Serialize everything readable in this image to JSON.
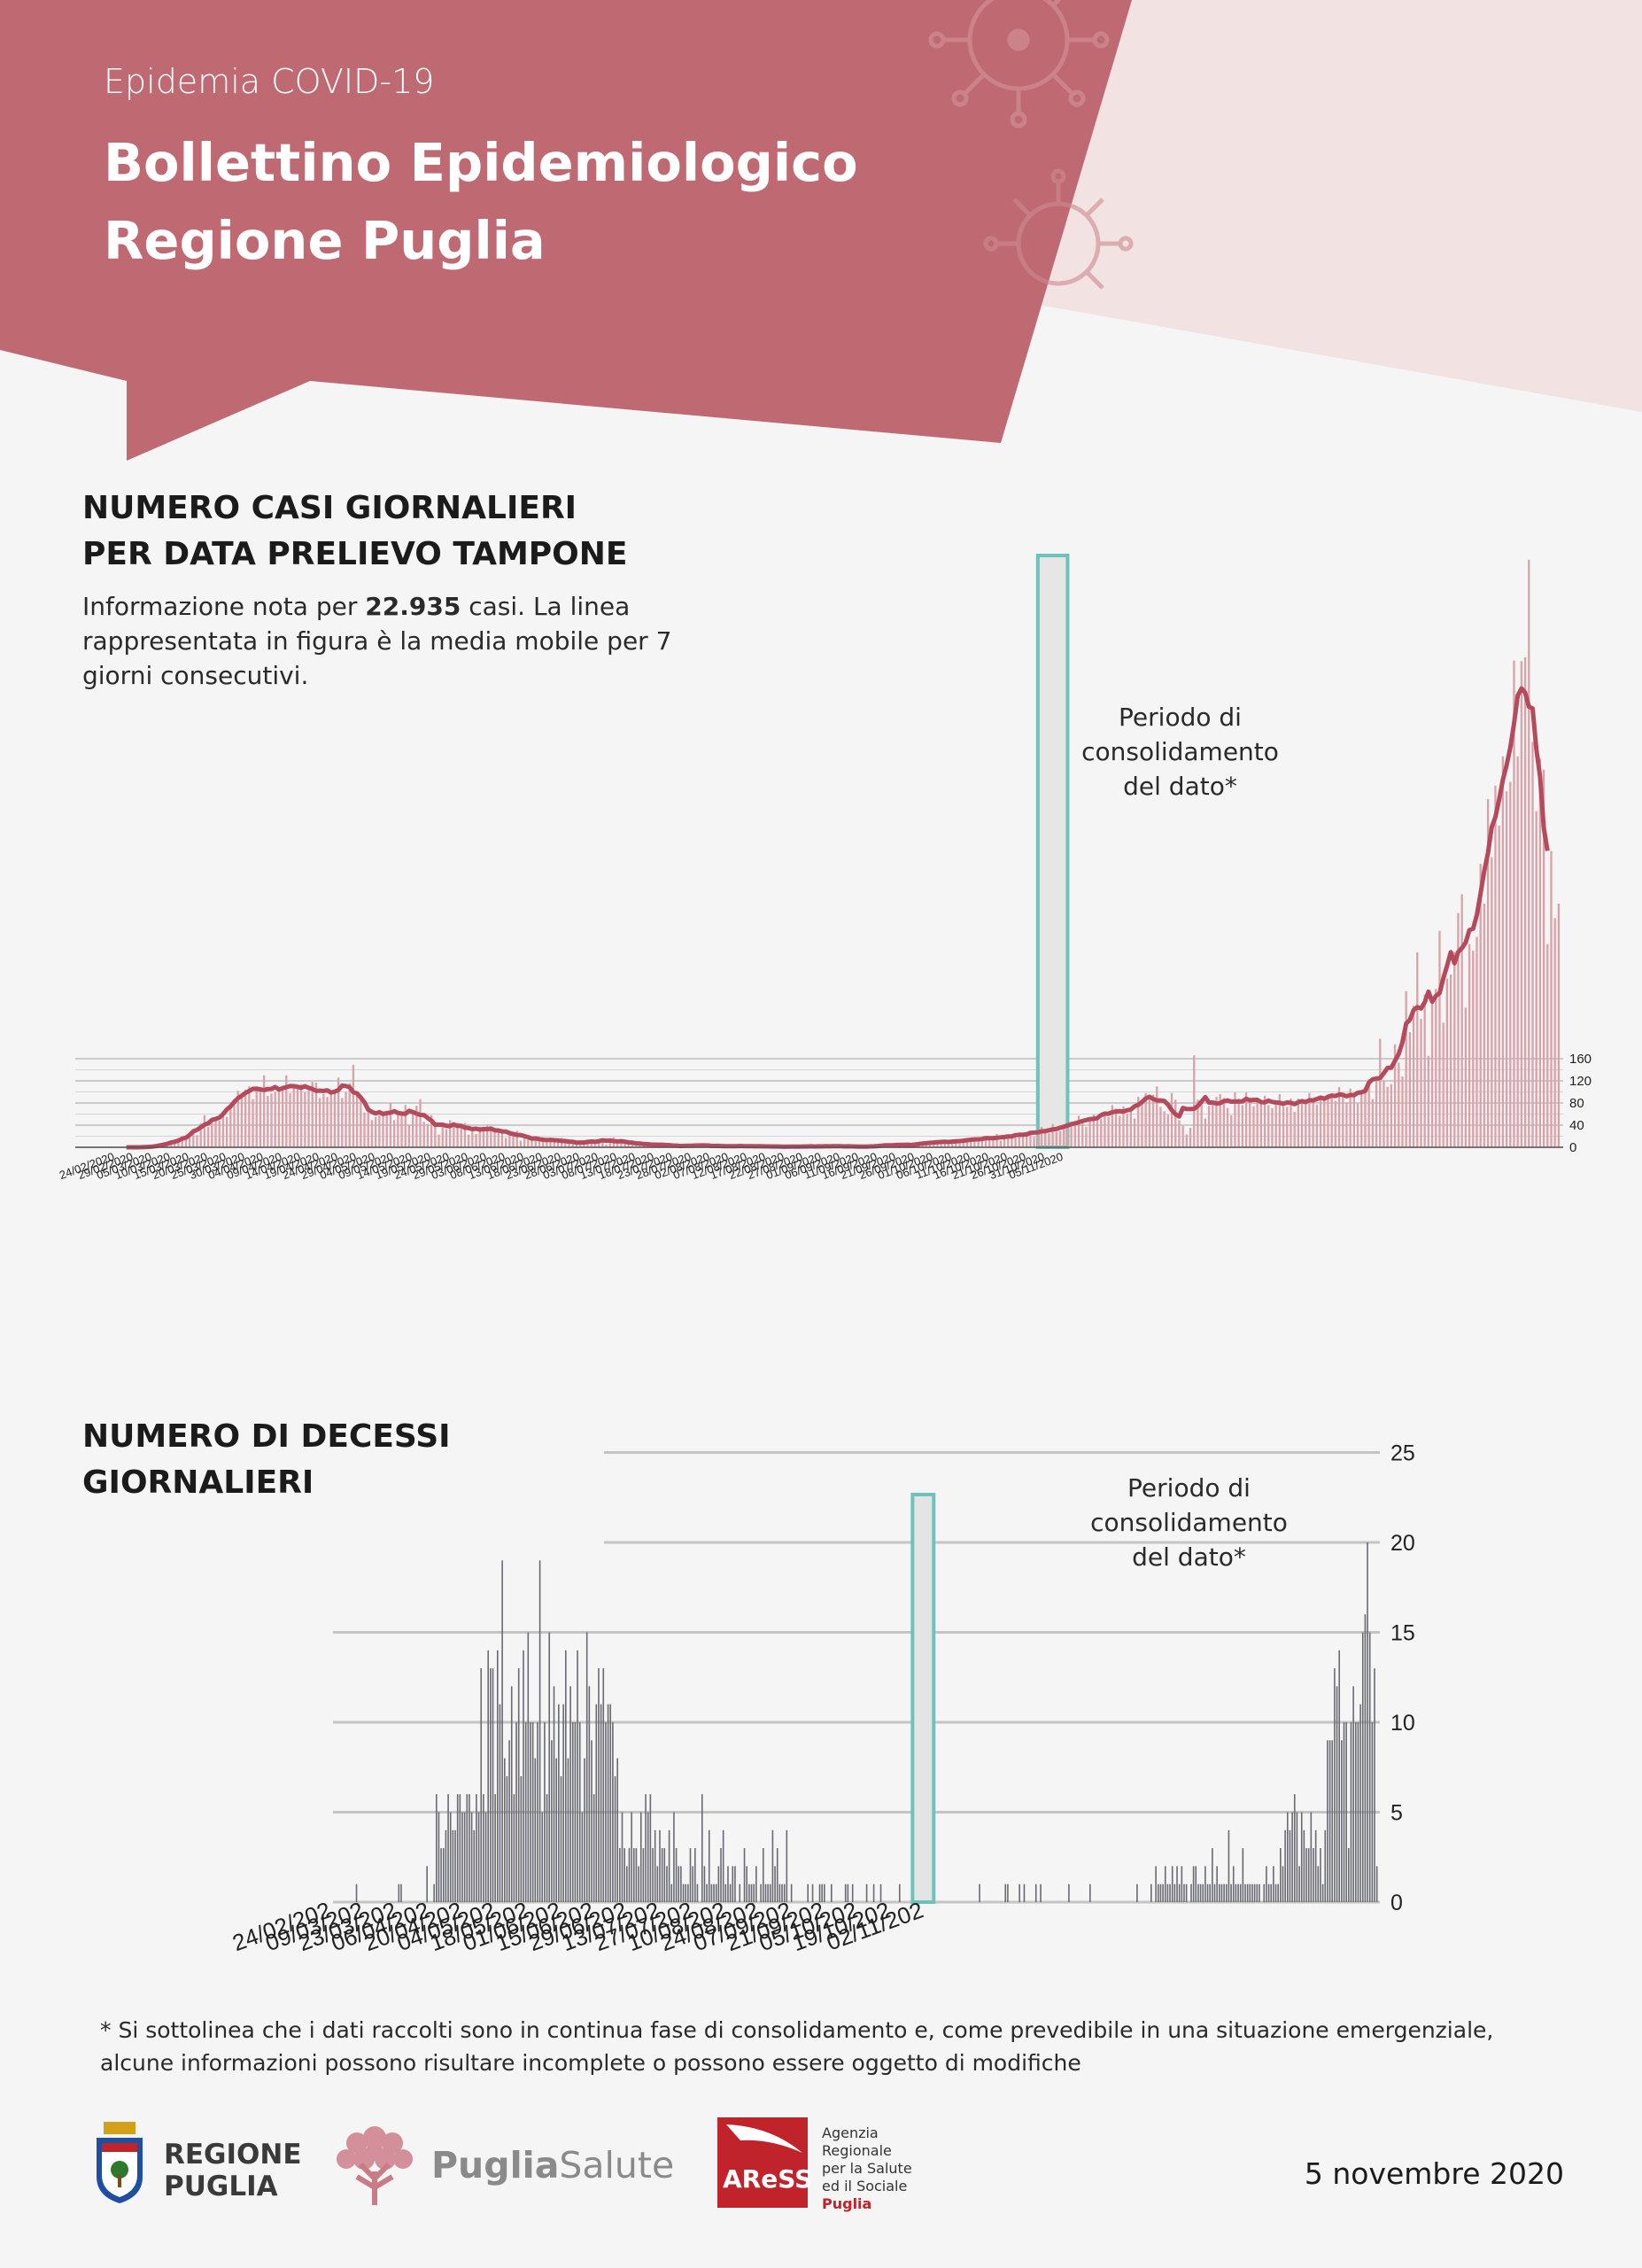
{
  "header": {
    "kicker": "Epidemia COVID-19",
    "title_line1": "Bollettino Epidemiologico",
    "title_line2": "Regione Puglia",
    "colors": {
      "banner": "#bf6a72",
      "banner_light": "#f2e2e2",
      "virus": "#cf8a90"
    }
  },
  "section_cases": {
    "title_line1": "NUMERO CASI GIORNALIERI",
    "title_line2": "PER DATA PRELIEVO TAMPONE",
    "desc_before": "Informazione nota per ",
    "desc_bold": "22.935",
    "desc_after": " casi. La linea rappresentata in figura è la media mobile per 7 giorni consecutivi.",
    "note_line1": "Periodo di",
    "note_line2": "consolidamento",
    "note_line3": "del dato*"
  },
  "section_deaths": {
    "title_line1": "NUMERO DI DECESSI",
    "title_line2": "GIORNALIERI",
    "note_line1": "Periodo di",
    "note_line2": "consolidamento",
    "note_line3": "del dato*"
  },
  "chart_data": [
    {
      "type": "bar",
      "name": "cases",
      "bar_color": "#d9a2a8",
      "line_color": "#b44a5c",
      "highlight_color": "#6cc3bb",
      "x_start": "24/02/2020",
      "tick_labels": [
        "24/02/2020",
        "29/02/2020",
        "05/03/2020",
        "10/03/2020",
        "15/03/2020",
        "20/03/2020",
        "25/03/2020",
        "30/03/2020",
        "04/04/2020",
        "09/04/2020",
        "14/04/2020",
        "19/04/2020",
        "24/04/2020",
        "29/04/2020",
        "04/05/2020",
        "09/05/2020",
        "14/05/2020",
        "19/05/2020",
        "24/05/2020",
        "29/05/2020",
        "03/06/2020",
        "08/06/2020",
        "13/06/2020",
        "18/06/2020",
        "23/06/2020",
        "28/06/2020",
        "03/07/2020",
        "08/07/2020",
        "13/07/2020",
        "18/07/2020",
        "23/07/2020",
        "28/07/2020",
        "02/08/2020",
        "07/08/2020",
        "12/08/2020",
        "17/08/2020",
        "22/08/2020",
        "27/08/2020",
        "01/09/2020",
        "06/09/2020",
        "11/09/2020",
        "16/09/2020",
        "21/09/2020",
        "26/09/2020",
        "01/10/2020",
        "06/10/2020",
        "11/10/2020",
        "16/10/2020",
        "21/10/2020",
        "26/10/2020",
        "31/10/2020",
        "05/11/2020"
      ],
      "y_ticks": [
        0,
        40,
        80,
        120,
        160
      ],
      "ylim": [
        0,
        1070
      ],
      "highlight_range": [
        "30/10/2020",
        "05/11/2020"
      ],
      "values": [
        0,
        0,
        0,
        0,
        0,
        0,
        0,
        0,
        0,
        0,
        1,
        2,
        3,
        3,
        6,
        10,
        8,
        12,
        18,
        13,
        18,
        30,
        22,
        43,
        58,
        37,
        45,
        51,
        48,
        64,
        55,
        75,
        82,
        102,
        92,
        104,
        110,
        87,
        110,
        106,
        130,
        93,
        97,
        100,
        101,
        111,
        130,
        98,
        110,
        110,
        114,
        100,
        103,
        118,
        117,
        89,
        96,
        91,
        102,
        99,
        126,
        89,
        100,
        116,
        149,
        95,
        85,
        63,
        73,
        49,
        55,
        58,
        64,
        66,
        80,
        49,
        60,
        61,
        76,
        41,
        60,
        75,
        87,
        46,
        42,
        58,
        40,
        23,
        42,
        33,
        49,
        41,
        44,
        36,
        44,
        23,
        35,
        24,
        37,
        31,
        41,
        32,
        31,
        32,
        32,
        17,
        28,
        28,
        30,
        12,
        20,
        22,
        15,
        14,
        15,
        12,
        14,
        11,
        14,
        11,
        17,
        11,
        9,
        7,
        9,
        8,
        8,
        6,
        13,
        9,
        15,
        14,
        5,
        14,
        18,
        8,
        11,
        7,
        11,
        8,
        8,
        9,
        4,
        3,
        5,
        4,
        6,
        4,
        8,
        3,
        2,
        2,
        2,
        1,
        3,
        3,
        5,
        3,
        3,
        4,
        3,
        3,
        2,
        1,
        1,
        4,
        2,
        1,
        3,
        2,
        2,
        3,
        1,
        1,
        1,
        2,
        3,
        1,
        2,
        1,
        0,
        1,
        1,
        1,
        3,
        1,
        2,
        0,
        2,
        1,
        3,
        1,
        3,
        1,
        2,
        1,
        3,
        2,
        1,
        1,
        2,
        1,
        0,
        1,
        2,
        2,
        3,
        3,
        5,
        4,
        7,
        2,
        2,
        6,
        5,
        5,
        5,
        4,
        8,
        9,
        12,
        8,
        10,
        9,
        9,
        10,
        11,
        10,
        13,
        13,
        12,
        14,
        17,
        16,
        15,
        14,
        16,
        24,
        12,
        19,
        20,
        20,
        18,
        25,
        24,
        27,
        25,
        19,
        26,
        37,
        28,
        25,
        42,
        28,
        29,
        37,
        42,
        44,
        39,
        57,
        46,
        37,
        51,
        59,
        55,
        51,
        60,
        55,
        76,
        70,
        57,
        74,
        60,
        64,
        52,
        91,
        79,
        98,
        92,
        95,
        110,
        73,
        65,
        59,
        98,
        86,
        49,
        39,
        23,
        35,
        166,
        86,
        85,
        52,
        75,
        79,
        91,
        96,
        89,
        71,
        58,
        99,
        88,
        76,
        99,
        87,
        74,
        90,
        80,
        93,
        76,
        71,
        84,
        96,
        74,
        73,
        88,
        64,
        88,
        80,
        79,
        98,
        86,
        77,
        87,
        87,
        96,
        97,
        84,
        109,
        94,
        81,
        106,
        92,
        79,
        100,
        108,
        123,
        87,
        125,
        196,
        121,
        109,
        114,
        186,
        153,
        128,
        282,
        208,
        256,
        352,
        232,
        276,
        165,
        266,
        286,
        391,
        225,
        305,
        312,
        353,
        423,
        457,
        252,
        367,
        355,
        380,
        512,
        440,
        629,
        524,
        653,
        581,
        706,
        643,
        660,
        879,
        706,
        878,
        885,
        1061,
        732,
        607,
        702,
        682,
        367,
        535,
        414,
        440
      ]
    },
    {
      "type": "bar",
      "name": "deaths",
      "bar_color": "#6a6a72",
      "grid_color": "#c4c4c4",
      "highlight_color": "#6cc3bb",
      "x_start": "24/02/2020",
      "tick_labels": [
        "24/02/202",
        "09/03/202",
        "23/03/202",
        "06/04/202",
        "20/04/202",
        "04/05/202",
        "18/05/202",
        "01/06/202",
        "15/06/202",
        "29/06/202",
        "13/07/202",
        "27/07/202",
        "10/08/202",
        "24/08/202",
        "07/09/202",
        "21/09/202",
        "05/10/202",
        "19/10/202",
        "02/11/202"
      ],
      "y_ticks": [
        0,
        5,
        10,
        15,
        20,
        25
      ],
      "ylim": [
        0,
        25
      ],
      "highlight_range": [
        "30/10/2020",
        "05/11/2020"
      ],
      "values": [
        0,
        0,
        0,
        0,
        0,
        0,
        0,
        0,
        0,
        0,
        0,
        1,
        0,
        0,
        0,
        0,
        0,
        0,
        0,
        0,
        0,
        0,
        0,
        0,
        0,
        0,
        0,
        0,
        0,
        1,
        1,
        0,
        0,
        0,
        0,
        0,
        0,
        0,
        0,
        0,
        0,
        2,
        0,
        0,
        1,
        6,
        5,
        3,
        3,
        4,
        6,
        5,
        4,
        4,
        6,
        6,
        5,
        5,
        6,
        6,
        5,
        4,
        6,
        5,
        13,
        6,
        5,
        14,
        13,
        13,
        6,
        14,
        11,
        19,
        8,
        7,
        9,
        12,
        6,
        10,
        13,
        7,
        14,
        10,
        15,
        10,
        10,
        8,
        10,
        19,
        5,
        10,
        6,
        15,
        9,
        12,
        8,
        11,
        7,
        11,
        14,
        8,
        12,
        10,
        10,
        14,
        10,
        5,
        8,
        15,
        12,
        9,
        6,
        11,
        13,
        11,
        13,
        10,
        11,
        11,
        10,
        7,
        8,
        3,
        5,
        3,
        2,
        3,
        5,
        3,
        3,
        2,
        5,
        3,
        6,
        5,
        6,
        3,
        4,
        2,
        4,
        3,
        3,
        2,
        4,
        1,
        5,
        3,
        2,
        2,
        1,
        1,
        1,
        3,
        2,
        3,
        1,
        0,
        6,
        2,
        1,
        4,
        1,
        1,
        1,
        2,
        3,
        4,
        1,
        2,
        1,
        2,
        2,
        0,
        1,
        0,
        3,
        2,
        1,
        1,
        1,
        2,
        0,
        1,
        3,
        1,
        1,
        1,
        4,
        2,
        3,
        1,
        1,
        1,
        4,
        0,
        1,
        0,
        0,
        0,
        0,
        0,
        0,
        1,
        0,
        1,
        0,
        0,
        1,
        1,
        1,
        0,
        0,
        1,
        0,
        0,
        0,
        0,
        0,
        1,
        1,
        0,
        1,
        0,
        0,
        0,
        0,
        0,
        1,
        0,
        0,
        1,
        0,
        0,
        1,
        0,
        0,
        0,
        0,
        0,
        0,
        0,
        1,
        0,
        0,
        0,
        0,
        0,
        0,
        0,
        0,
        0,
        0,
        0,
        0,
        0,
        0,
        0,
        0,
        0,
        0,
        0,
        0,
        0,
        0,
        0,
        0,
        0,
        0,
        0,
        0,
        0,
        0,
        0,
        0,
        0,
        1,
        0,
        0,
        0,
        0,
        0,
        0,
        0,
        0,
        0,
        0,
        1,
        1,
        0,
        0,
        0,
        0,
        1,
        0,
        1,
        0,
        0,
        0,
        0,
        1,
        0,
        1,
        0,
        0,
        0,
        0,
        0,
        0,
        0,
        0,
        0,
        0,
        0,
        1,
        0,
        0,
        0,
        0,
        0,
        0,
        0,
        0,
        1,
        0,
        0,
        0,
        0,
        0,
        0,
        0,
        0,
        0,
        0,
        0,
        0,
        0,
        0,
        0,
        0,
        0,
        0,
        0,
        1,
        0,
        0,
        0,
        0,
        0,
        1,
        0,
        2,
        1,
        1,
        1,
        2,
        1,
        1,
        2,
        1,
        2,
        1,
        2,
        1,
        1,
        0,
        1,
        2,
        2,
        1,
        1,
        1,
        2,
        1,
        1,
        3,
        1,
        2,
        1,
        1,
        1,
        1,
        4,
        1,
        2,
        1,
        1,
        1,
        3,
        1,
        1,
        1,
        1,
        1,
        1,
        1,
        0,
        1,
        2,
        1,
        1,
        2,
        1,
        1,
        3,
        2,
        4,
        5,
        4,
        5,
        6,
        5,
        2,
        5,
        4,
        3,
        3,
        5,
        3,
        4,
        2,
        3,
        1,
        4,
        9,
        9,
        9,
        13,
        12,
        14,
        9,
        10,
        10,
        3,
        10,
        12,
        10,
        10,
        11,
        15,
        16,
        20,
        15,
        10,
        13,
        2
      ]
    }
  ],
  "footnote_line1": "* Si sottolinea che i dati raccolti sono in continua fase di consolidamento e, come prevedibile in una situazione emergenziale,",
  "footnote_line2": "alcune informazioni possono risultare incomplete o possono essere oggetto di modifiche",
  "logos": {
    "regione_line1": "REGIONE",
    "regione_line2": "PUGLIA",
    "puglia_bold": "Puglia",
    "puglia_light": "Salute",
    "ares_mark": "AReSS",
    "ares_line1": "Agenzia",
    "ares_line2": "Regionale",
    "ares_line3": "per la Salute",
    "ares_line4": "ed il Sociale",
    "ares_line5": "Puglia"
  },
  "date": "5 novembre 2020"
}
